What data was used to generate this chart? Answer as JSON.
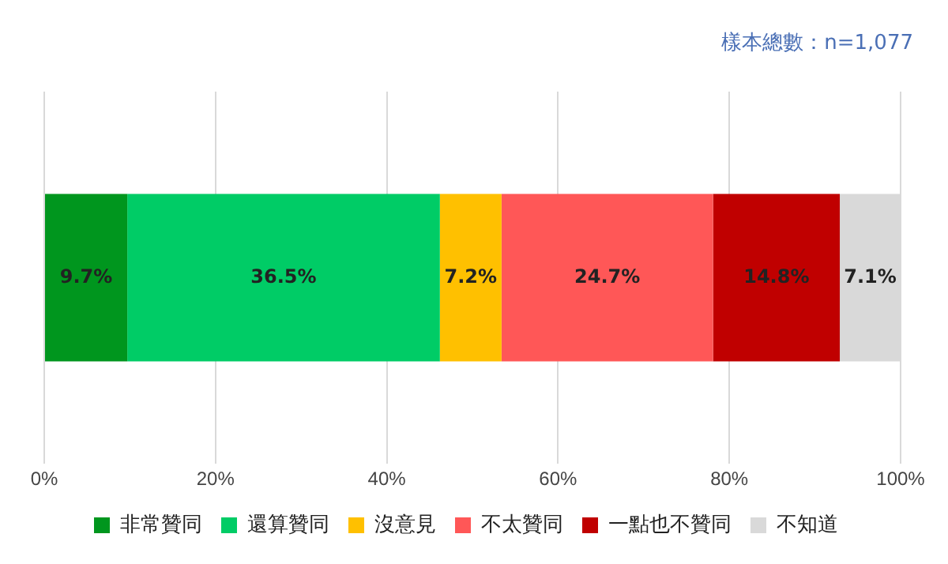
{
  "chart_data": {
    "type": "bar",
    "orientation": "horizontal",
    "stacked": true,
    "categories": [
      null
    ],
    "series": [
      {
        "name": "非常贊同",
        "color": "#00961e",
        "values": [
          9.7
        ],
        "value_labels": [
          "9.7%"
        ]
      },
      {
        "name": "還算贊同",
        "color": "#00cc66",
        "values": [
          36.5
        ],
        "value_labels": [
          "36.5%"
        ]
      },
      {
        "name": "沒意見",
        "color": "#ffc000",
        "values": [
          7.2
        ],
        "value_labels": [
          "7.2%"
        ]
      },
      {
        "name": "不太贊同",
        "color": "#ff5757",
        "values": [
          24.7
        ],
        "value_labels": [
          "24.7%"
        ]
      },
      {
        "name": "一點也不贊同",
        "color": "#c00000",
        "values": [
          14.8
        ],
        "value_labels": [
          "14.8%"
        ]
      },
      {
        "name": "不知道",
        "color": "#d9d9d9",
        "values": [
          7.1
        ],
        "value_labels": [
          "7.1%"
        ]
      }
    ],
    "xlim": [
      0,
      100
    ],
    "xticks": [
      {
        "value": 0,
        "label": "0%"
      },
      {
        "value": 20,
        "label": "20%"
      },
      {
        "value": 40,
        "label": "40%"
      },
      {
        "value": 60,
        "label": "60%"
      },
      {
        "value": 80,
        "label": "80%"
      },
      {
        "value": 100,
        "label": "100%"
      }
    ],
    "grid": "x",
    "legend": "bottom",
    "tick_labels": "x",
    "annotations": [
      "樣本總數：n=1,077"
    ]
  }
}
